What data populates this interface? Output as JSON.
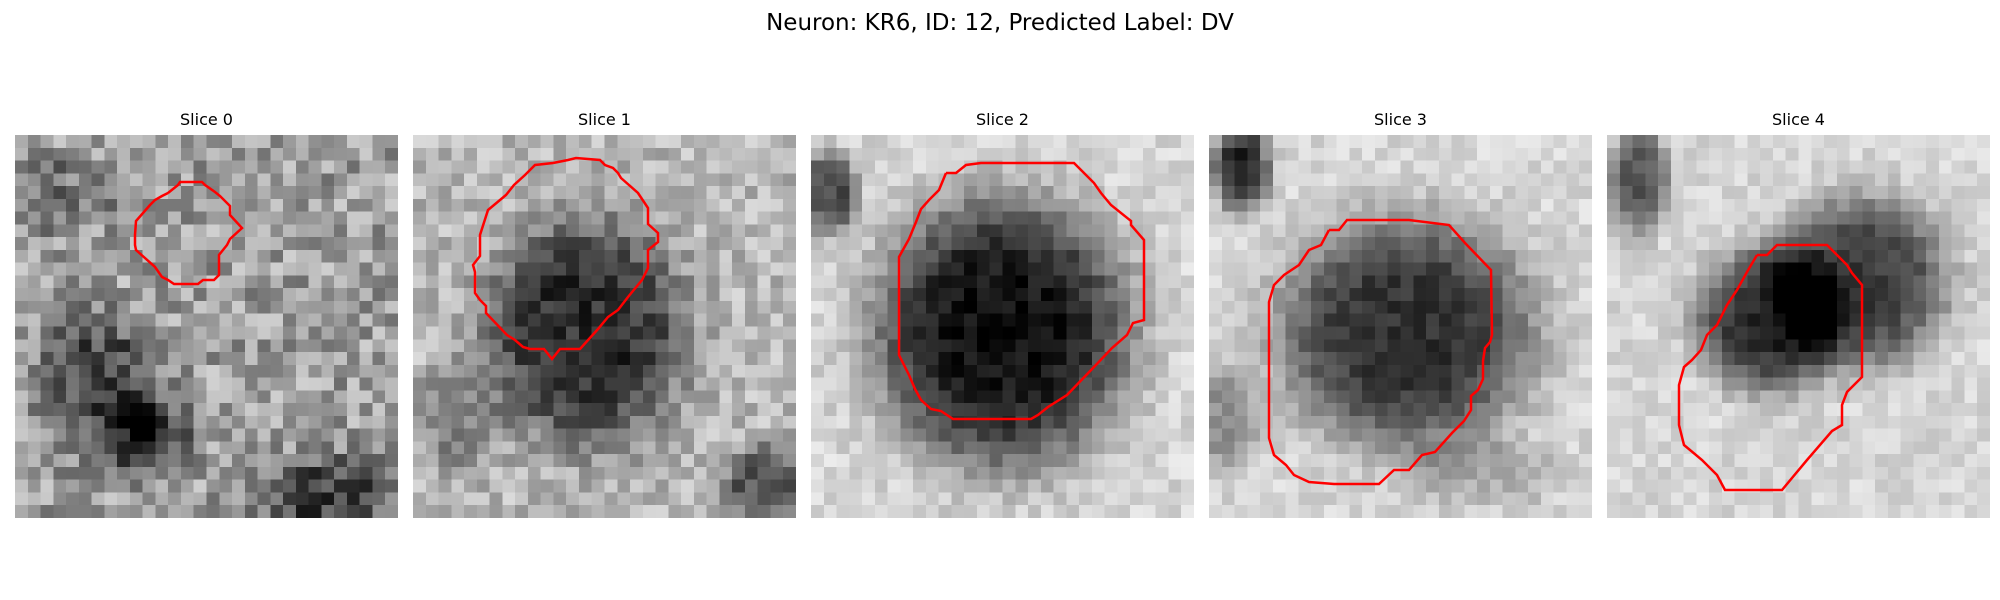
{
  "figure": {
    "title": "Neuron: KR6, ID: 12, Predicted Label: DV"
  },
  "colors": {
    "background": "#ffffff",
    "contour": "#ff0000",
    "colormap": "gray"
  },
  "panels": [
    {
      "title": "Slice 0"
    },
    {
      "title": "Slice 1"
    },
    {
      "title": "Slice 2"
    },
    {
      "title": "Slice 3"
    },
    {
      "title": "Slice 4"
    }
  ]
}
